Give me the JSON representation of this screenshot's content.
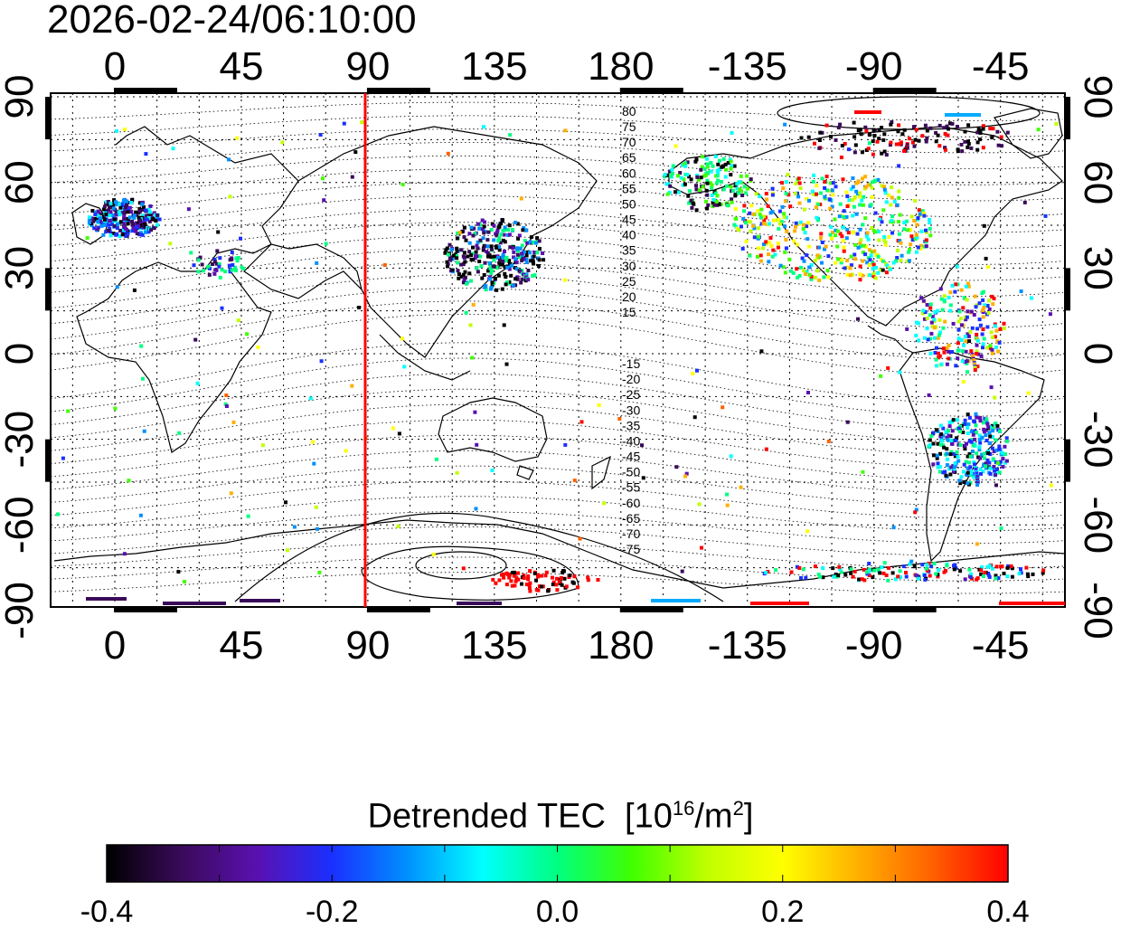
{
  "timestamp": "2026-02-24/06:10:00",
  "map": {
    "type": "equirectangular world map",
    "lon_labels": [
      "0",
      "45",
      "90",
      "135",
      "180",
      "-135",
      "-90",
      "-45"
    ],
    "lat_labels_left": [
      "90",
      "60",
      "30",
      "0",
      "-30",
      "-60",
      "-90"
    ],
    "lat_labels_right": [
      "90",
      "60",
      "30",
      "0",
      "-30",
      "-60",
      "-90"
    ],
    "meridian_marker_lon": 90,
    "meridian_marker_color": "#ff0000",
    "contour_labels_north": [
      "80",
      "75",
      "70",
      "65",
      "60",
      "55",
      "50",
      "45",
      "40",
      "35",
      "30",
      "25",
      "20",
      "15"
    ],
    "contour_labels_south": [
      "-15",
      "-20",
      "-25",
      "-30",
      "-35",
      "-40",
      "-45",
      "-50",
      "-55",
      "-60",
      "-65",
      "-70",
      "-75"
    ]
  },
  "colorbar": {
    "title_main": "Detrended TEC",
    "title_unit_pre": "[10",
    "title_unit_sup1": "16",
    "title_unit_mid": "/m",
    "title_unit_sup2": "2",
    "title_unit_post": "]",
    "tick_labels": [
      "-0.4",
      "-0.2",
      "0.0",
      "0.2",
      "0.4"
    ],
    "min": -0.4,
    "max": 0.4,
    "colors": [
      "#000000",
      "#3a0a5a",
      "#5a10b0",
      "#1a30ff",
      "#0090ff",
      "#00ffff",
      "#00ff80",
      "#40ff00",
      "#c0ff00",
      "#ffff00",
      "#ffb000",
      "#ff6000",
      "#ff0000"
    ]
  }
}
